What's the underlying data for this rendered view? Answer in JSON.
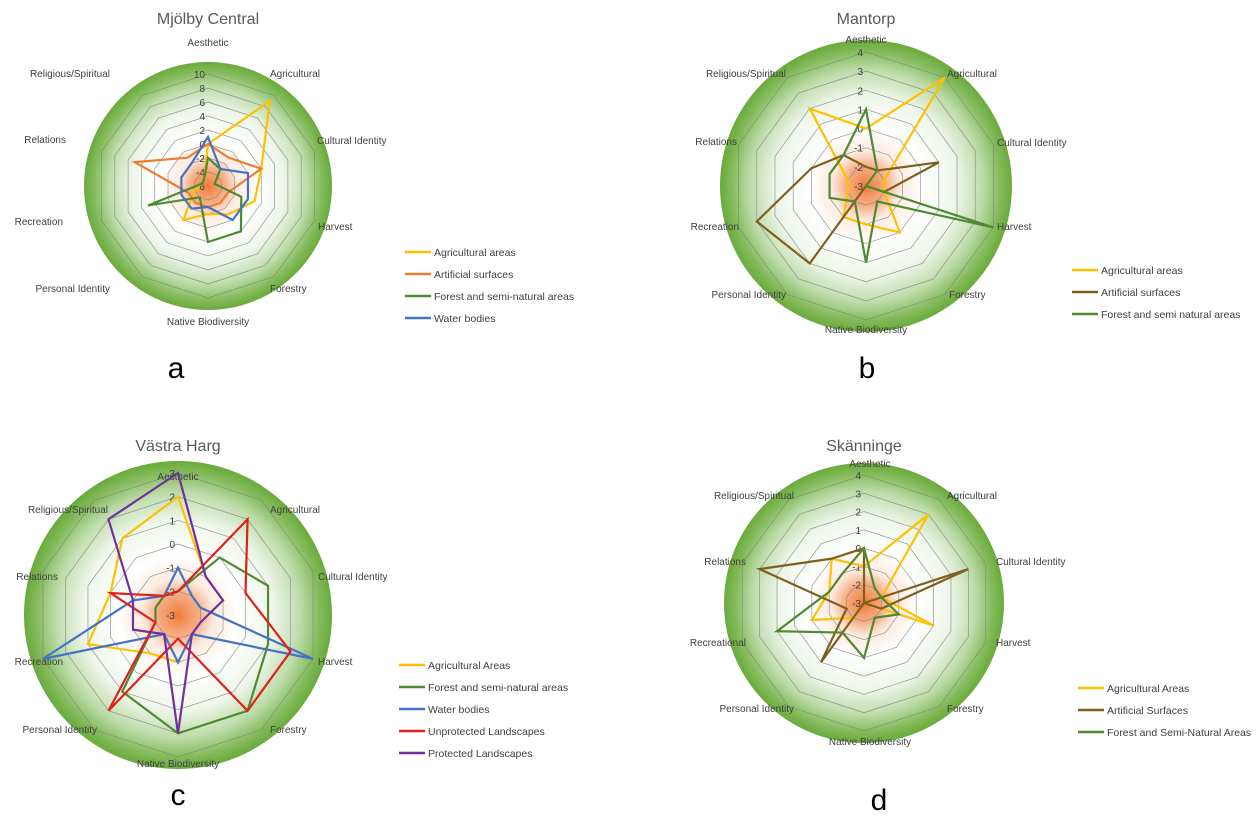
{
  "colors": {
    "agri": "#ffc000",
    "artif_orange": "#ed7d31",
    "artif_brown": "#7f5f1d",
    "forest": "#4e8a30",
    "water": "#4472c4",
    "unprot": "#e0201b",
    "prot": "#7030a0",
    "bg_outer": "#6aaa3c",
    "bg_center": "#f07a3a",
    "grid": "#7f7f7f"
  },
  "chart_data": [
    {
      "type": "radar",
      "title": "Mjölby Central",
      "panel_label": "a",
      "axes": [
        "Aesthetic",
        "Agricultural",
        "Cultural Identity",
        "Harvest",
        "Forestry",
        "Native Biodiversity",
        "Personal Identity",
        "Recreation",
        "Relations",
        "Religious/Spiritual"
      ],
      "range": [
        -6,
        10
      ],
      "ticks": [
        "10",
        "8",
        "6",
        "4",
        "2",
        "0",
        "-2",
        "-4",
        "-6"
      ],
      "tick_values": [
        10,
        8,
        6,
        4,
        2,
        0,
        -2,
        -4,
        -6
      ],
      "series": [
        {
          "name": "Agricultural areas",
          "color_key": "agri",
          "values": [
            0,
            9,
            2,
            1,
            -1,
            -2,
            0,
            -4,
            -5,
            -5
          ]
        },
        {
          "name": "Artificial surfaces",
          "color_key": "artif_orange",
          "values": [
            0,
            -1,
            2,
            -3,
            -3,
            -3,
            -3,
            -3,
            5,
            -1
          ]
        },
        {
          "name": "Forest and semi-natural areas",
          "color_key": "forest",
          "values": [
            -2,
            -3,
            -5,
            -1,
            2,
            2,
            -4,
            3,
            -5,
            -5
          ]
        },
        {
          "name": "Water bodies",
          "color_key": "water",
          "values": [
            1,
            -3,
            0,
            0,
            0,
            -3,
            -2,
            -2,
            -2,
            -2
          ]
        }
      ]
    },
    {
      "type": "radar",
      "title": "Mantorp",
      "panel_label": "b",
      "axes": [
        "Aesthetic",
        "Agricultural",
        "Cultural Identity",
        "Harvest",
        "Forestry",
        "Native Biodiversity",
        "Personal Identity",
        "Recreation",
        "Relations",
        "Religious/Spiritual"
      ],
      "range": [
        -3,
        4
      ],
      "ticks": [
        "4",
        "3",
        "2",
        "1",
        "0",
        "-1",
        "-2",
        "-3"
      ],
      "tick_values": [
        4,
        3,
        2,
        1,
        0,
        -1,
        -2,
        -3
      ],
      "series": [
        {
          "name": "Agricultural areas",
          "color_key": "agri",
          "values": [
            0,
            4,
            -2,
            -2,
            0,
            -1,
            -1,
            -2,
            -2,
            2
          ]
        },
        {
          "name": "Artificial surfaces",
          "color_key": "artif_brown",
          "values": [
            -2,
            -2,
            1,
            -2,
            -3,
            -3,
            2,
            3,
            0,
            -1
          ]
        },
        {
          "name": "Forest and semi natural areas",
          "color_key": "forest",
          "values": [
            1,
            -2,
            -3,
            4,
            -2,
            1,
            -2,
            -1,
            -1,
            -1
          ]
        }
      ]
    },
    {
      "type": "radar",
      "title": "Västra Harg",
      "panel_label": "c",
      "axes": [
        "Aesthetic",
        "Agricultural",
        "Cultural Identity",
        "Harvest",
        "Forestry",
        "Native Biodiversity",
        "Personal Identity",
        "Recreation",
        "Relations",
        "Religious/Spiritual"
      ],
      "range": [
        -3,
        3
      ],
      "ticks": [
        "3",
        "2",
        "1",
        "0",
        "-1",
        "-2",
        "-3"
      ],
      "tick_values": [
        3,
        2,
        1,
        0,
        -1,
        -2,
        -3
      ],
      "series": [
        {
          "name": "Agricultural Areas",
          "color_key": "agri",
          "values": [
            2,
            -1,
            -1,
            -2,
            -2,
            -1,
            -1,
            1,
            0,
            1
          ]
        },
        {
          "name": "Forest and semi-natural areas",
          "color_key": "forest",
          "values": [
            -2,
            0,
            1,
            1,
            2,
            2,
            1,
            -2,
            -2,
            -2
          ]
        },
        {
          "name": "Water bodies",
          "color_key": "water",
          "values": [
            -1,
            -2,
            -2,
            3,
            -2,
            -1,
            -2,
            3,
            -1,
            -2
          ]
        },
        {
          "name": "Unprotected Landscapes",
          "color_key": "unprot",
          "values": [
            -2,
            2,
            0,
            2,
            2,
            -2,
            2,
            -2,
            0,
            -2
          ]
        },
        {
          "name": "Protected Landscapes",
          "color_key": "prot",
          "values": [
            3,
            -1,
            -1,
            -2,
            -2,
            2,
            -2,
            -1,
            -1,
            2
          ]
        }
      ]
    },
    {
      "type": "radar",
      "title": "Skänninge",
      "panel_label": "d",
      "axes": [
        "Aesthetic",
        "Agricultural",
        "Cultural Identity",
        "Harvest",
        "Forestry",
        "Native Biodiversity",
        "Personal Identity",
        "Recreational",
        "Relations",
        "Religious/Spiritual"
      ],
      "range": [
        -3,
        4
      ],
      "ticks": [
        "4",
        "3",
        "2",
        "1",
        "0",
        "-1",
        "-2",
        "-3"
      ],
      "tick_values": [
        4,
        3,
        2,
        1,
        0,
        -1,
        -2,
        -3
      ],
      "series": [
        {
          "name": "Agricultural Areas",
          "color_key": "agri",
          "values": [
            -1,
            3,
            -2,
            1,
            -3,
            -3,
            -2,
            0,
            -1,
            0
          ]
        },
        {
          "name": "Artificial Surfaces",
          "color_key": "artif_brown",
          "values": [
            0,
            -3,
            3,
            -2,
            -3,
            -3,
            1,
            -2,
            3,
            0
          ]
        },
        {
          "name": "Forest and Semi-Natural Areas",
          "color_key": "forest",
          "values": [
            0,
            -2,
            -2,
            -1,
            -2,
            0,
            -1,
            2,
            -1,
            -1
          ]
        }
      ]
    }
  ]
}
